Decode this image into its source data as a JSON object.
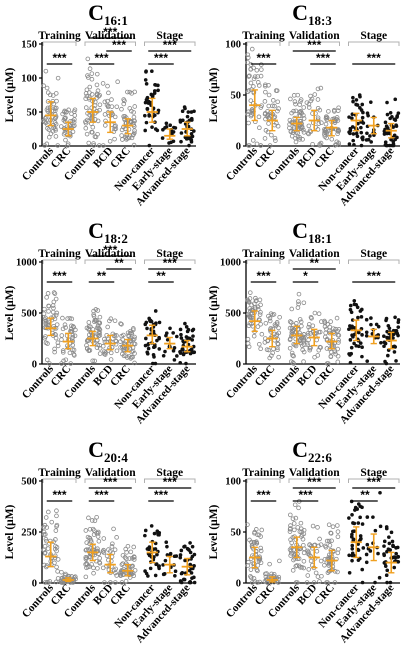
{
  "colors": {
    "axis": "#000000",
    "gray_point": "#8a8a8a",
    "black_point": "#111111",
    "error_bar": "#f0a020",
    "bracket": "#b0b0b0"
  },
  "chart_data": [
    {
      "type": "scatter",
      "title": "C",
      "subscript": "16:1",
      "ylabel": "Level (μM)",
      "ylim": [
        0,
        150
      ],
      "yticks": [
        "0",
        "50",
        "100",
        "150"
      ],
      "sections": [
        "Training",
        "Validation",
        "Stage"
      ],
      "groups": [
        {
          "label": "Controls",
          "section": 0,
          "style": "gray",
          "median": 45,
          "q1": 30,
          "q3": 65,
          "n": 50,
          "max": 120
        },
        {
          "label": "CRC",
          "section": 0,
          "style": "gray",
          "median": 25,
          "q1": 15,
          "q3": 35,
          "n": 40,
          "max": 60
        },
        {
          "label": "Controls",
          "section": 1,
          "style": "gray",
          "median": 50,
          "q1": 35,
          "q3": 70,
          "n": 60,
          "max": 140
        },
        {
          "label": "BCD",
          "section": 1,
          "style": "gray",
          "median": 35,
          "q1": 20,
          "q3": 50,
          "n": 30,
          "max": 100
        },
        {
          "label": "CRC",
          "section": 1,
          "style": "gray",
          "median": 30,
          "q1": 18,
          "q3": 40,
          "n": 50,
          "max": 80
        },
        {
          "label": "Non-cancer",
          "section": 2,
          "style": "black",
          "median": 50,
          "q1": 35,
          "q3": 70,
          "n": 40,
          "max": 110
        },
        {
          "label": "Early-stage",
          "section": 2,
          "style": "black",
          "median": 15,
          "q1": 10,
          "q3": 25,
          "n": 15,
          "max": 40
        },
        {
          "label": "Advanced-stage",
          "section": 2,
          "style": "black",
          "median": 25,
          "q1": 15,
          "q3": 35,
          "n": 40,
          "max": 60
        }
      ],
      "comparisons": [
        {
          "from": 0,
          "to": 1,
          "label": "***"
        },
        {
          "from": 2,
          "to": 3,
          "label": "***"
        },
        {
          "from": 3,
          "to": 4,
          "label": "***"
        },
        {
          "from": 2,
          "to": 4,
          "label": "***"
        },
        {
          "from": 5,
          "to": 6,
          "label": "***"
        },
        {
          "from": 5,
          "to": 7,
          "label": "***"
        }
      ]
    },
    {
      "type": "scatter",
      "title": "C",
      "subscript": "18:3",
      "ylabel": "Level (μM)",
      "ylim": [
        0,
        100
      ],
      "yticks": [
        "0",
        "50",
        "100"
      ],
      "sections": [
        "Training",
        "Validation",
        "Stage"
      ],
      "groups": [
        {
          "label": "Controls",
          "section": 0,
          "style": "gray",
          "median": 40,
          "q1": 25,
          "q3": 55,
          "n": 50,
          "max": 95
        },
        {
          "label": "CRC",
          "section": 0,
          "style": "gray",
          "median": 25,
          "q1": 15,
          "q3": 35,
          "n": 40,
          "max": 60
        },
        {
          "label": "Controls",
          "section": 1,
          "style": "gray",
          "median": 22,
          "q1": 15,
          "q3": 28,
          "n": 60,
          "max": 50
        },
        {
          "label": "BCD",
          "section": 1,
          "style": "gray",
          "median": 25,
          "q1": 15,
          "q3": 35,
          "n": 30,
          "max": 60
        },
        {
          "label": "CRC",
          "section": 1,
          "style": "gray",
          "median": 18,
          "q1": 10,
          "q3": 25,
          "n": 50,
          "max": 40
        },
        {
          "label": "Non-cancer",
          "section": 2,
          "style": "black",
          "median": 25,
          "q1": 15,
          "q3": 32,
          "n": 40,
          "max": 50
        },
        {
          "label": "Early-stage",
          "section": 2,
          "style": "black",
          "median": 20,
          "q1": 12,
          "q3": 28,
          "n": 15,
          "max": 45
        },
        {
          "label": "Advanced-stage",
          "section": 2,
          "style": "black",
          "median": 15,
          "q1": 8,
          "q3": 22,
          "n": 40,
          "max": 60
        }
      ],
      "comparisons": [
        {
          "from": 0,
          "to": 1,
          "label": "***"
        },
        {
          "from": 2,
          "to": 4,
          "label": "***"
        },
        {
          "from": 3,
          "to": 4,
          "label": "***"
        },
        {
          "from": 5,
          "to": 7,
          "label": "***"
        }
      ]
    },
    {
      "type": "scatter",
      "title": "C",
      "subscript": "18:2",
      "ylabel": "Level (μM)",
      "ylim": [
        0,
        1000
      ],
      "yticks": [
        "0",
        "500",
        "1000"
      ],
      "sections": [
        "Training",
        "Validation",
        "Stage"
      ],
      "groups": [
        {
          "label": "Controls",
          "section": 0,
          "style": "gray",
          "median": 350,
          "q1": 280,
          "q3": 450,
          "n": 50,
          "max": 700
        },
        {
          "label": "CRC",
          "section": 0,
          "style": "gray",
          "median": 220,
          "q1": 150,
          "q3": 300,
          "n": 40,
          "max": 450
        },
        {
          "label": "Controls",
          "section": 1,
          "style": "gray",
          "median": 250,
          "q1": 180,
          "q3": 320,
          "n": 60,
          "max": 600
        },
        {
          "label": "BCD",
          "section": 1,
          "style": "gray",
          "median": 200,
          "q1": 140,
          "q3": 280,
          "n": 30,
          "max": 450
        },
        {
          "label": "CRC",
          "section": 1,
          "style": "gray",
          "median": 180,
          "q1": 120,
          "q3": 240,
          "n": 50,
          "max": 400
        },
        {
          "label": "Non-cancer",
          "section": 2,
          "style": "black",
          "median": 280,
          "q1": 200,
          "q3": 380,
          "n": 40,
          "max": 520
        },
        {
          "label": "Early-stage",
          "section": 2,
          "style": "black",
          "median": 200,
          "q1": 150,
          "q3": 260,
          "n": 15,
          "max": 350
        },
        {
          "label": "Advanced-stage",
          "section": 2,
          "style": "black",
          "median": 170,
          "q1": 120,
          "q3": 230,
          "n": 40,
          "max": 400
        }
      ],
      "comparisons": [
        {
          "from": 0,
          "to": 1,
          "label": "***"
        },
        {
          "from": 2,
          "to": 4,
          "label": "***"
        },
        {
          "from": 2,
          "to": 3,
          "label": "**"
        },
        {
          "from": 3,
          "to": 4,
          "label": "**"
        },
        {
          "from": 5,
          "to": 7,
          "label": "***"
        },
        {
          "from": 5,
          "to": 6,
          "label": "**"
        }
      ]
    },
    {
      "type": "scatter",
      "title": "C",
      "subscript": "18:1",
      "ylabel": "Level (μM)",
      "ylim": [
        0,
        1000
      ],
      "yticks": [
        "0",
        "500",
        "1000"
      ],
      "sections": [
        "Training",
        "Validation",
        "Stage"
      ],
      "groups": [
        {
          "label": "Controls",
          "section": 0,
          "style": "gray",
          "median": 420,
          "q1": 320,
          "q3": 520,
          "n": 50,
          "max": 700
        },
        {
          "label": "CRC",
          "section": 0,
          "style": "gray",
          "median": 250,
          "q1": 170,
          "q3": 330,
          "n": 40,
          "max": 500
        },
        {
          "label": "Controls",
          "section": 1,
          "style": "gray",
          "median": 280,
          "q1": 200,
          "q3": 370,
          "n": 60,
          "max": 700
        },
        {
          "label": "BCD",
          "section": 1,
          "style": "gray",
          "median": 260,
          "q1": 180,
          "q3": 340,
          "n": 30,
          "max": 500
        },
        {
          "label": "CRC",
          "section": 1,
          "style": "gray",
          "median": 220,
          "q1": 150,
          "q3": 300,
          "n": 50,
          "max": 450
        },
        {
          "label": "Non-cancer",
          "section": 2,
          "style": "black",
          "median": 330,
          "q1": 230,
          "q3": 430,
          "n": 40,
          "max": 620
        },
        {
          "label": "Early-stage",
          "section": 2,
          "style": "black",
          "median": 270,
          "q1": 200,
          "q3": 340,
          "n": 15,
          "max": 450
        },
        {
          "label": "Advanced-stage",
          "section": 2,
          "style": "black",
          "median": 230,
          "q1": 150,
          "q3": 310,
          "n": 40,
          "max": 550
        }
      ],
      "comparisons": [
        {
          "from": 0,
          "to": 1,
          "label": "***"
        },
        {
          "from": 2,
          "to": 4,
          "label": "**"
        },
        {
          "from": 2,
          "to": 3,
          "label": "*"
        },
        {
          "from": 5,
          "to": 7,
          "label": "***"
        }
      ]
    },
    {
      "type": "scatter",
      "title": "C",
      "subscript": "20:4",
      "ylabel": "Level (μM)",
      "ylim": [
        0,
        500
      ],
      "yticks": [
        "0",
        "250",
        "500"
      ],
      "sections": [
        "Training",
        "Validation",
        "Stage"
      ],
      "groups": [
        {
          "label": "Controls",
          "section": 0,
          "style": "gray",
          "median": 130,
          "q1": 80,
          "q3": 200,
          "n": 50,
          "max": 420
        },
        {
          "label": "CRC",
          "section": 0,
          "style": "gray",
          "median": 15,
          "q1": 8,
          "q3": 25,
          "n": 35,
          "max": 60
        },
        {
          "label": "Controls",
          "section": 1,
          "style": "gray",
          "median": 150,
          "q1": 110,
          "q3": 190,
          "n": 60,
          "max": 330
        },
        {
          "label": "BCD",
          "section": 1,
          "style": "gray",
          "median": 90,
          "q1": 50,
          "q3": 140,
          "n": 30,
          "max": 270
        },
        {
          "label": "CRC",
          "section": 1,
          "style": "gray",
          "median": 60,
          "q1": 35,
          "q3": 90,
          "n": 50,
          "max": 180
        },
        {
          "label": "Non-cancer",
          "section": 2,
          "style": "black",
          "median": 150,
          "q1": 100,
          "q3": 200,
          "n": 40,
          "max": 280
        },
        {
          "label": "Early-stage",
          "section": 2,
          "style": "black",
          "median": 90,
          "q1": 50,
          "q3": 130,
          "n": 15,
          "max": 200
        },
        {
          "label": "Advanced-stage",
          "section": 2,
          "style": "black",
          "median": 80,
          "q1": 40,
          "q3": 120,
          "n": 40,
          "max": 200
        }
      ],
      "comparisons": [
        {
          "from": 0,
          "to": 1,
          "label": "***"
        },
        {
          "from": 2,
          "to": 4,
          "label": "***"
        },
        {
          "from": 2,
          "to": 3,
          "label": "***"
        },
        {
          "from": 5,
          "to": 7,
          "label": "***"
        },
        {
          "from": 5,
          "to": 6,
          "label": "***"
        }
      ]
    },
    {
      "type": "scatter",
      "title": "C",
      "subscript": "22:6",
      "ylabel": "Level (μM)",
      "ylim": [
        0,
        100
      ],
      "yticks": [
        "0",
        "50",
        "100"
      ],
      "sections": [
        "Training",
        "Validation",
        "Stage"
      ],
      "groups": [
        {
          "label": "Controls",
          "section": 0,
          "style": "gray",
          "median": 25,
          "q1": 15,
          "q3": 35,
          "n": 50,
          "max": 60
        },
        {
          "label": "CRC",
          "section": 0,
          "style": "gray",
          "median": 3,
          "q1": 1,
          "q3": 6,
          "n": 30,
          "max": 25
        },
        {
          "label": "Controls",
          "section": 1,
          "style": "gray",
          "median": 35,
          "q1": 25,
          "q3": 45,
          "n": 60,
          "max": 80
        },
        {
          "label": "BCD",
          "section": 1,
          "style": "gray",
          "median": 25,
          "q1": 15,
          "q3": 35,
          "n": 30,
          "max": 60
        },
        {
          "label": "CRC",
          "section": 1,
          "style": "gray",
          "median": 22,
          "q1": 12,
          "q3": 32,
          "n": 50,
          "max": 60
        },
        {
          "label": "Non-cancer",
          "section": 2,
          "style": "black",
          "median": 40,
          "q1": 25,
          "q3": 55,
          "n": 40,
          "max": 80
        },
        {
          "label": "Early-stage",
          "section": 2,
          "style": "black",
          "median": 35,
          "q1": 22,
          "q3": 48,
          "n": 15,
          "max": 95
        },
        {
          "label": "Advanced-stage",
          "section": 2,
          "style": "black",
          "median": 20,
          "q1": 10,
          "q3": 30,
          "n": 40,
          "max": 55
        }
      ],
      "comparisons": [
        {
          "from": 0,
          "to": 1,
          "label": "***"
        },
        {
          "from": 2,
          "to": 4,
          "label": "***"
        },
        {
          "from": 2,
          "to": 3,
          "label": "***"
        },
        {
          "from": 5,
          "to": 7,
          "label": "***"
        },
        {
          "from": 5,
          "to": 6,
          "label": "**"
        }
      ]
    }
  ]
}
